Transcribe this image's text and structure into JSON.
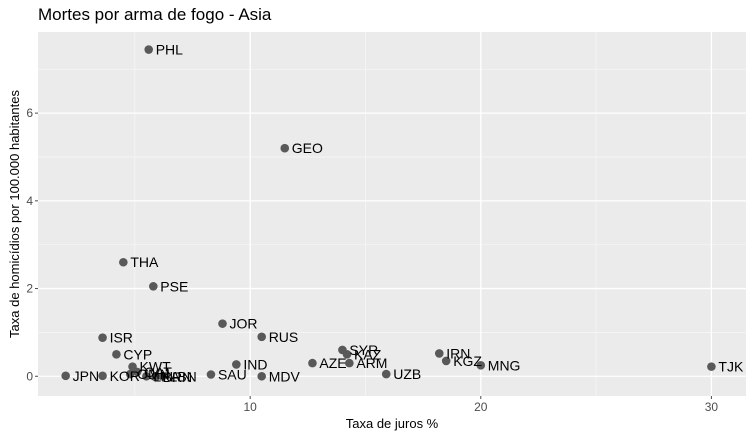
{
  "chart_data": {
    "type": "scatter",
    "title": "Mortes por arma de fogo - Asia",
    "xlabel": "Taxa de juros %",
    "ylabel": "Taxa de homicídios por 100.000 habitantes",
    "xlim": [
      0.8,
      31.5
    ],
    "ylim": [
      -0.45,
      7.85
    ],
    "xticks": [
      10,
      20,
      30
    ],
    "yticks": [
      0,
      2,
      4,
      6
    ],
    "grid": true,
    "legend": "none",
    "point_color": "#595959",
    "panel_color": "#ebebeb",
    "points": [
      {
        "label": "PHL",
        "x": 5.6,
        "y": 7.45
      },
      {
        "label": "GEO",
        "x": 11.5,
        "y": 5.2
      },
      {
        "label": "THA",
        "x": 4.5,
        "y": 2.6
      },
      {
        "label": "PSE",
        "x": 5.8,
        "y": 2.05
      },
      {
        "label": "JOR",
        "x": 8.8,
        "y": 1.2
      },
      {
        "label": "RUS",
        "x": 10.5,
        "y": 0.9
      },
      {
        "label": "ISR",
        "x": 3.6,
        "y": 0.88
      },
      {
        "label": "CYP",
        "x": 4.2,
        "y": 0.5
      },
      {
        "label": "SYR",
        "x": 14.0,
        "y": 0.6
      },
      {
        "label": "KAZ",
        "x": 14.2,
        "y": 0.5
      },
      {
        "label": "IRN",
        "x": 18.2,
        "y": 0.52
      },
      {
        "label": "KGZ",
        "x": 18.5,
        "y": 0.35
      },
      {
        "label": "MNG",
        "x": 20.0,
        "y": 0.25
      },
      {
        "label": "TJK",
        "x": 30.0,
        "y": 0.22
      },
      {
        "label": "AZE",
        "x": 12.7,
        "y": 0.3
      },
      {
        "label": "ARM",
        "x": 14.3,
        "y": 0.3
      },
      {
        "label": "UZB",
        "x": 15.9,
        "y": 0.05
      },
      {
        "label": "IND",
        "x": 9.4,
        "y": 0.27
      },
      {
        "label": "SAU",
        "x": 8.3,
        "y": 0.04
      },
      {
        "label": "MDV",
        "x": 10.5,
        "y": 0.0
      },
      {
        "label": "KWT",
        "x": 4.9,
        "y": 0.22
      },
      {
        "label": "JPN",
        "x": 2.0,
        "y": 0.01
      },
      {
        "label": "KOR",
        "x": 3.6,
        "y": 0.01
      },
      {
        "label": "OMN",
        "x": 4.8,
        "y": 0.05
      },
      {
        "label": "QAT",
        "x": 5.1,
        "y": 0.1
      },
      {
        "label": "LKA",
        "x": 5.5,
        "y": 0.0
      },
      {
        "label": "BRN",
        "x": 5.9,
        "y": -0.02
      },
      {
        "label": "LBN",
        "x": 6.2,
        "y": 0.0
      }
    ]
  }
}
